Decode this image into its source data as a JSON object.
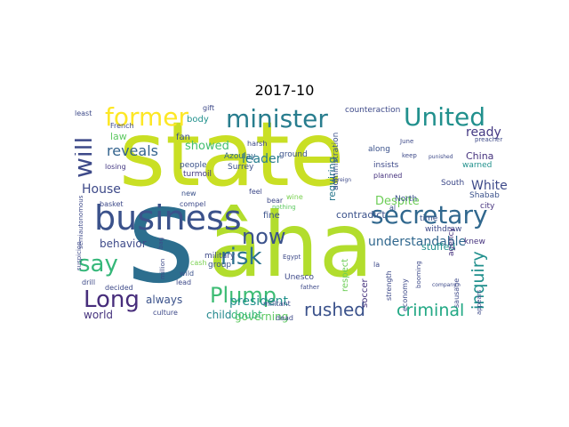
{
  "title": "2017-10",
  "words": [
    {
      "text": "state",
      "color": "#c9df24"
    },
    {
      "text": "âha",
      "color": "#b2dd2d"
    },
    {
      "text": "s",
      "color": "#2c6e8e"
    },
    {
      "text": "business",
      "color": "#3b528b"
    },
    {
      "text": "minister",
      "color": "#287d8e"
    },
    {
      "text": "United",
      "color": "#21908d"
    },
    {
      "text": "former",
      "color": "#fde725"
    },
    {
      "text": "secretary",
      "color": "#31688e"
    },
    {
      "text": "will",
      "color": "#3e4a89"
    },
    {
      "text": "now",
      "color": "#3b528b"
    },
    {
      "text": "risk",
      "color": "#2c728e"
    },
    {
      "text": "say",
      "color": "#35b779"
    },
    {
      "text": "Long",
      "color": "#472d7b"
    },
    {
      "text": "Plump",
      "color": "#3dbc74"
    },
    {
      "text": "rushed",
      "color": "#3b528b"
    },
    {
      "text": "criminal",
      "color": "#22a884"
    },
    {
      "text": "inquiry",
      "color": "#21908d"
    },
    {
      "text": "understandable",
      "color": "#31688e"
    },
    {
      "text": "ready",
      "color": "#443983"
    },
    {
      "text": "reveals",
      "color": "#33638d"
    },
    {
      "text": "House",
      "color": "#3e4a89"
    },
    {
      "text": "White",
      "color": "#3e4a89"
    },
    {
      "text": "leader",
      "color": "#287d8e"
    },
    {
      "text": "president",
      "color": "#21918c"
    },
    {
      "text": "showed",
      "color": "#44bf70"
    },
    {
      "text": "requiring",
      "color": "#2a788e"
    },
    {
      "text": "Despite",
      "color": "#6ece58"
    },
    {
      "text": "contradict",
      "color": "#3b528b"
    },
    {
      "text": "behavior",
      "color": "#3e4a89"
    },
    {
      "text": "always",
      "color": "#3b528b"
    },
    {
      "text": "governing",
      "color": "#5ec962"
    },
    {
      "text": "child",
      "color": "#23888e"
    },
    {
      "text": "doubt",
      "color": "#35b779"
    },
    {
      "text": "world",
      "color": "#46337e"
    },
    {
      "text": "China",
      "color": "#46337e"
    },
    {
      "text": "law",
      "color": "#5ec962"
    },
    {
      "text": "body",
      "color": "#21918c"
    },
    {
      "text": "fan",
      "color": "#3b528b"
    },
    {
      "text": "Azoulay",
      "color": "#31688e"
    },
    {
      "text": "Surrey",
      "color": "#3b528b"
    },
    {
      "text": "turmoil",
      "color": "#443983"
    },
    {
      "text": "people",
      "color": "#3b528b"
    },
    {
      "text": "losing",
      "color": "#443983"
    },
    {
      "text": "basket",
      "color": "#3e4a89"
    },
    {
      "text": "fine",
      "color": "#3b528b"
    },
    {
      "text": "military",
      "color": "#3e4a89"
    },
    {
      "text": "group",
      "color": "#3b528b"
    },
    {
      "text": "Unesco",
      "color": "#3e4a89"
    },
    {
      "text": "respect",
      "color": "#6ece58"
    },
    {
      "text": "soccer",
      "color": "#46337e"
    },
    {
      "text": "North",
      "color": "#3b528b"
    },
    {
      "text": "time",
      "color": "#3b528b"
    },
    {
      "text": "withdraw",
      "color": "#3e4a89"
    },
    {
      "text": "knew",
      "color": "#46337e"
    },
    {
      "text": "stuffed",
      "color": "#21908d"
    },
    {
      "text": "agency",
      "color": "#46337e"
    },
    {
      "text": "Shabab",
      "color": "#3b528b"
    },
    {
      "text": "city",
      "color": "#46337e"
    },
    {
      "text": "South",
      "color": "#3e4a89"
    },
    {
      "text": "warned",
      "color": "#21918c"
    },
    {
      "text": "insists",
      "color": "#3e4a89"
    },
    {
      "text": "planned",
      "color": "#46337e"
    },
    {
      "text": "along",
      "color": "#3b528b"
    },
    {
      "text": "counteraction",
      "color": "#3e4a89"
    },
    {
      "text": "administration",
      "color": "#3b528b"
    },
    {
      "text": "ground",
      "color": "#3b528b"
    },
    {
      "text": "harsh",
      "color": "#3e4a89"
    },
    {
      "text": "gift",
      "color": "#3e4a89"
    },
    {
      "text": "least",
      "color": "#3e4a89"
    },
    {
      "text": "French",
      "color": "#3e4a89"
    },
    {
      "text": "cash",
      "color": "#7ad151"
    },
    {
      "text": "new",
      "color": "#3b528b"
    },
    {
      "text": "compel",
      "color": "#3e4a89"
    },
    {
      "text": "wild",
      "color": "#3b528b"
    },
    {
      "text": "lead",
      "color": "#3e4a89"
    },
    {
      "text": "decided",
      "color": "#3e4a89"
    },
    {
      "text": "drill",
      "color": "#3e4a89"
    },
    {
      "text": "culture",
      "color": "#3e4a89"
    },
    {
      "text": "dead",
      "color": "#3e4a89"
    },
    {
      "text": "militant",
      "color": "#3e4a89"
    },
    {
      "text": "Egypt",
      "color": "#3e4a89"
    },
    {
      "text": "father",
      "color": "#3e4a89"
    },
    {
      "text": "al",
      "color": "#3b528b"
    },
    {
      "text": "strength",
      "color": "#3e4a89"
    },
    {
      "text": "economy",
      "color": "#3e4a89"
    },
    {
      "text": "booming",
      "color": "#3e4a89"
    },
    {
      "text": "sausage",
      "color": "#3e4a89"
    },
    {
      "text": "wine",
      "color": "#7ad151"
    },
    {
      "text": "bear",
      "color": "#3e4a89"
    },
    {
      "text": "nothing",
      "color": "#5ec962"
    },
    {
      "text": "million",
      "color": "#3e4a89"
    },
    {
      "text": "semiautonomous",
      "color": "#3e4a89"
    },
    {
      "text": "suspicion",
      "color": "#3e4a89"
    },
    {
      "text": "bag",
      "color": "#3e4a89"
    },
    {
      "text": "punished",
      "color": "#3e4a89"
    },
    {
      "text": "preacher",
      "color": "#3e4a89"
    },
    {
      "text": "June",
      "color": "#3e4a89"
    },
    {
      "text": "keep",
      "color": "#3e4a89"
    },
    {
      "text": "appears",
      "color": "#3e4a89"
    },
    {
      "text": "company",
      "color": "#3e4a89"
    },
    {
      "text": "foreign",
      "color": "#3e4a89"
    },
    {
      "text": "feel",
      "color": "#3e4a89"
    },
    {
      "text": "la",
      "color": "#3e4a89"
    }
  ]
}
